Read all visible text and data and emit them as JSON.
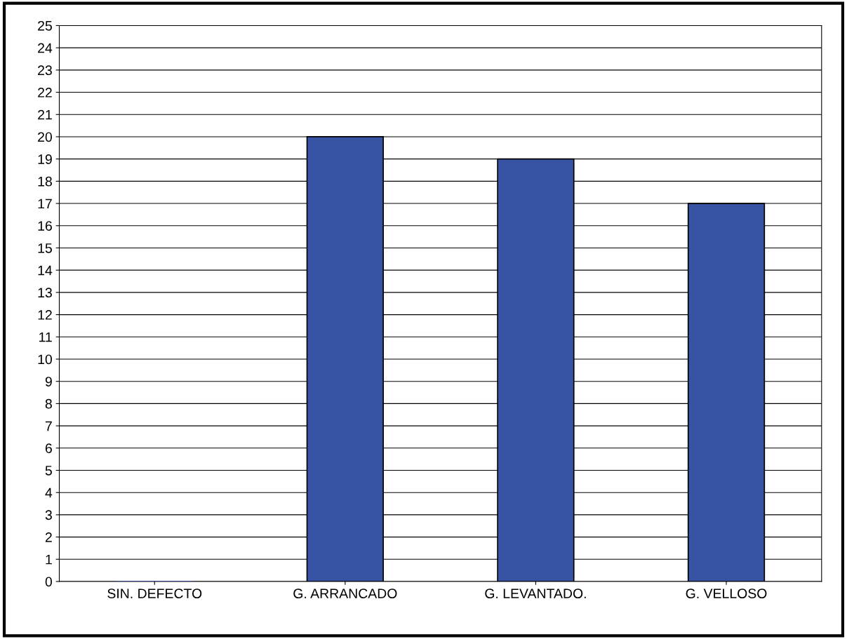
{
  "chart_data": {
    "type": "bar",
    "categories": [
      "SIN. DEFECTO",
      "G. ARRANCADO",
      "G. LEVANTADO.",
      "G. VELLOSO"
    ],
    "values": [
      0,
      20,
      19,
      17
    ],
    "color": "#3953a4",
    "ylim": [
      0,
      25
    ],
    "yticks": [
      0,
      1,
      2,
      3,
      4,
      5,
      6,
      7,
      8,
      9,
      10,
      11,
      12,
      13,
      14,
      15,
      16,
      17,
      18,
      19,
      20,
      21,
      22,
      23,
      24,
      25
    ],
    "grid": "y"
  }
}
